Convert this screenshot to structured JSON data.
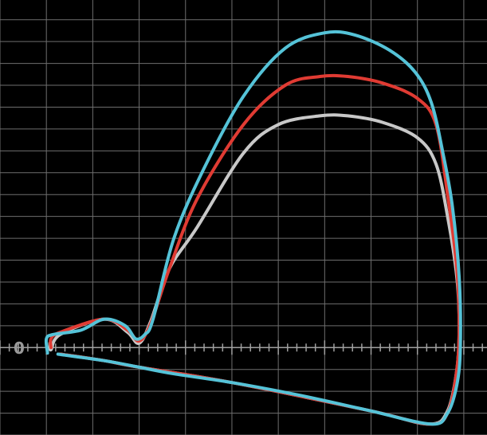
{
  "chart_data": {
    "type": "line",
    "title": "",
    "xlabel": "",
    "ylabel": "",
    "xlim": [
      0,
      21
    ],
    "ylim": [
      -4,
      15.9
    ],
    "grid": true,
    "zero_label": "0",
    "colors": {
      "background": "#000000",
      "grid": "#6e6e6e",
      "axis": "#a0a0a0"
    },
    "series": [
      {
        "color": "#c8c8c8",
        "points": [
          [
            2.15,
            0.2
          ],
          [
            2.2,
            -0.1
          ],
          [
            2.6,
            0.6
          ],
          [
            4.5,
            1.3
          ],
          [
            5.5,
            0.7
          ],
          [
            6.0,
            0.2
          ],
          [
            6.5,
            1.2
          ],
          [
            7.3,
            3.6
          ],
          [
            8.5,
            5.5
          ],
          [
            10.5,
            8.9
          ],
          [
            12.0,
            10.2
          ],
          [
            13.8,
            10.6
          ],
          [
            15.0,
            10.6
          ],
          [
            16.5,
            10.3
          ],
          [
            18.0,
            9.6
          ],
          [
            18.8,
            8.4
          ],
          [
            19.3,
            6.0
          ],
          [
            19.7,
            3.2
          ],
          [
            19.8,
            1.0
          ],
          [
            19.7,
            -1.0
          ],
          [
            19.3,
            -2.9
          ],
          [
            18.5,
            -3.5
          ],
          [
            16.0,
            -2.9
          ],
          [
            10.0,
            -1.6
          ],
          [
            6.0,
            -0.9
          ],
          [
            4.5,
            -0.6
          ],
          [
            2.6,
            -0.3
          ]
        ]
      },
      {
        "color": "#e03b33",
        "points": [
          [
            2.2,
            0.0
          ],
          [
            2.2,
            0.4
          ],
          [
            2.6,
            0.7
          ],
          [
            4.5,
            1.3
          ],
          [
            5.5,
            0.8
          ],
          [
            6.0,
            0.3
          ],
          [
            6.5,
            1.1
          ],
          [
            7.3,
            3.6
          ],
          [
            8.5,
            6.8
          ],
          [
            10.5,
            10.2
          ],
          [
            12.3,
            12.0
          ],
          [
            13.8,
            12.4
          ],
          [
            15.0,
            12.4
          ],
          [
            16.5,
            12.1
          ],
          [
            18.0,
            11.4
          ],
          [
            18.8,
            10.2
          ],
          [
            19.3,
            7.0
          ],
          [
            19.7,
            3.6
          ],
          [
            19.8,
            1.0
          ],
          [
            19.7,
            -1.0
          ],
          [
            19.3,
            -3.0
          ],
          [
            18.5,
            -3.5
          ],
          [
            16.0,
            -2.9
          ],
          [
            10.0,
            -1.6
          ],
          [
            6.0,
            -0.9
          ],
          [
            4.5,
            -0.6
          ],
          [
            2.6,
            -0.3
          ]
        ]
      },
      {
        "color": "#55c3d8",
        "points": [
          [
            2.05,
            -0.25
          ],
          [
            2.0,
            0.4
          ],
          [
            2.3,
            0.6
          ],
          [
            3.5,
            0.8
          ],
          [
            4.5,
            1.3
          ],
          [
            5.4,
            1.0
          ],
          [
            5.85,
            0.4
          ],
          [
            6.25,
            0.6
          ],
          [
            6.6,
            1.3
          ],
          [
            7.5,
            5.0
          ],
          [
            8.8,
            8.2
          ],
          [
            10.5,
            11.5
          ],
          [
            12.3,
            13.7
          ],
          [
            14.0,
            14.4
          ],
          [
            15.3,
            14.3
          ],
          [
            16.8,
            13.6
          ],
          [
            17.9,
            12.6
          ],
          [
            18.6,
            11.2
          ],
          [
            19.1,
            8.9
          ],
          [
            19.5,
            6.5
          ],
          [
            19.8,
            3.2
          ],
          [
            19.85,
            0.0
          ],
          [
            19.7,
            -1.7
          ],
          [
            19.3,
            -3.0
          ],
          [
            18.6,
            -3.5
          ],
          [
            16.0,
            -2.9
          ],
          [
            13.0,
            -2.2
          ],
          [
            10.0,
            -1.6
          ],
          [
            7.5,
            -1.2
          ],
          [
            6.0,
            -0.9
          ],
          [
            4.5,
            -0.6
          ],
          [
            2.5,
            -0.3
          ]
        ]
      }
    ]
  }
}
